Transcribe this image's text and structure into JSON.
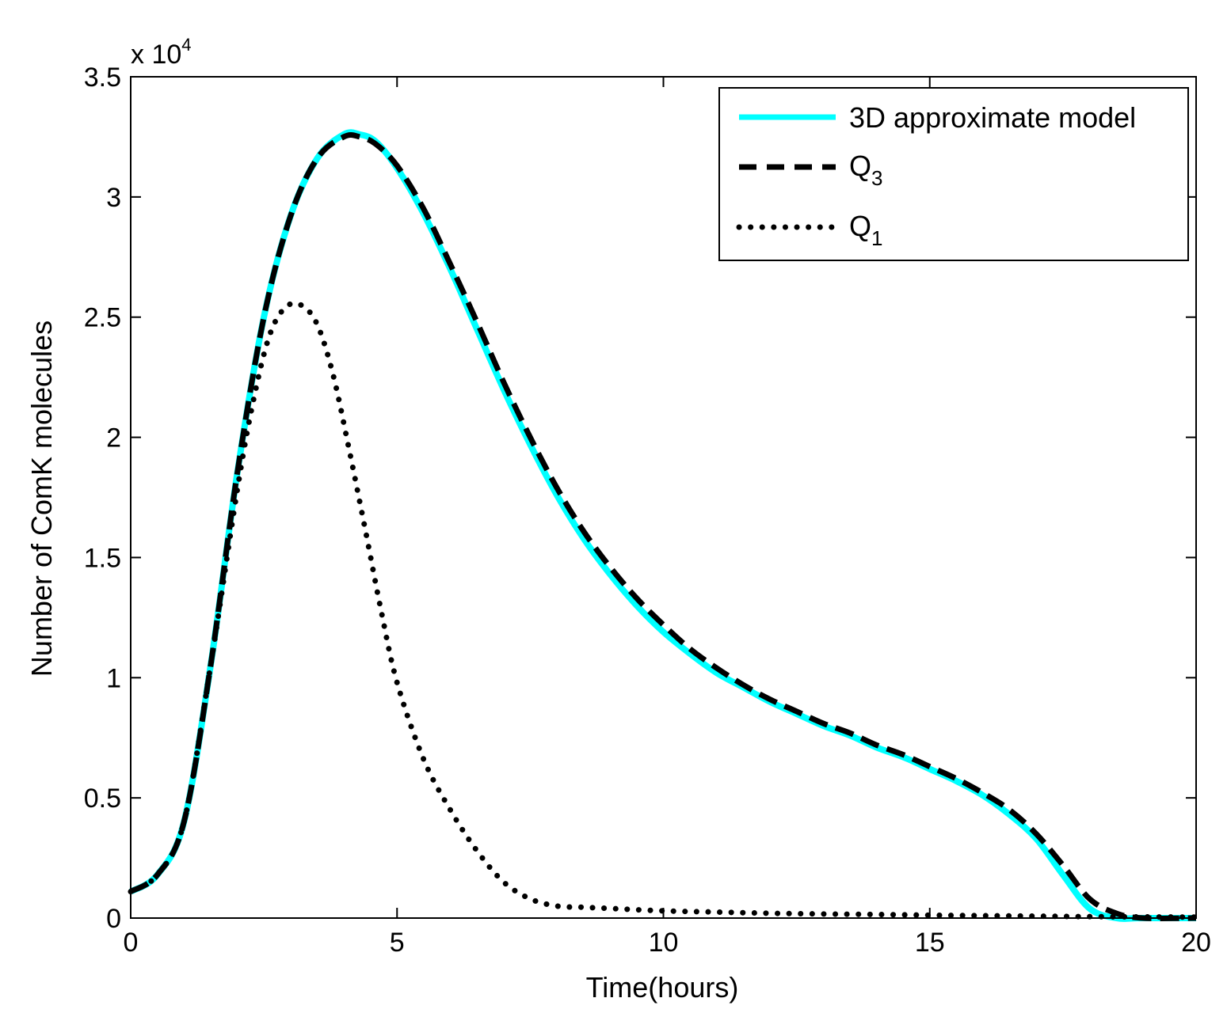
{
  "chart_data": {
    "type": "line",
    "title": "",
    "xlabel": "Time(hours)",
    "ylabel": "Number of ComK molecules",
    "y_multiplier_base": "x 10",
    "y_multiplier_exp": "4",
    "xlim": [
      0,
      20
    ],
    "ylim": [
      0,
      3.5
    ],
    "x_ticks": [
      0,
      5,
      10,
      15,
      20
    ],
    "x_tick_labels": [
      "0",
      "5",
      "10",
      "15",
      "20"
    ],
    "y_ticks": [
      0,
      0.5,
      1,
      1.5,
      2,
      2.5,
      3,
      3.5
    ],
    "y_tick_labels": [
      "0",
      "0.5",
      "1",
      "1.5",
      "2",
      "2.5",
      "3",
      "3.5"
    ],
    "grid": false,
    "legend_position": "top-right",
    "legend": [
      {
        "label": "3D approximate model",
        "base": "3D approximate model",
        "sub": ""
      },
      {
        "label": "Q3",
        "base": "Q",
        "sub": "3"
      },
      {
        "label": "Q1",
        "base": "Q",
        "sub": "1"
      }
    ],
    "series": [
      {
        "name": "3D approximate model",
        "color": "#00ffff",
        "style": "solid",
        "x": [
          0,
          0.5,
          1,
          1.5,
          2,
          2.5,
          3,
          3.5,
          4,
          4.3,
          4.6,
          5,
          5.5,
          6,
          6.5,
          7,
          7.5,
          8,
          8.5,
          9,
          9.5,
          10,
          10.5,
          11,
          11.5,
          12,
          12.5,
          13,
          13.5,
          14,
          14.5,
          15,
          15.5,
          16,
          16.5,
          17,
          17.5,
          18,
          18.5,
          19,
          20
        ],
        "y": [
          0.11,
          0.18,
          0.4,
          1.05,
          1.85,
          2.5,
          2.92,
          3.16,
          3.26,
          3.26,
          3.23,
          3.12,
          2.93,
          2.7,
          2.45,
          2.2,
          1.97,
          1.76,
          1.58,
          1.43,
          1.3,
          1.19,
          1.1,
          1.02,
          0.96,
          0.9,
          0.85,
          0.8,
          0.76,
          0.71,
          0.67,
          0.62,
          0.57,
          0.51,
          0.43,
          0.33,
          0.18,
          0.04,
          0.0,
          0.0,
          0.0
        ]
      },
      {
        "name": "Q3",
        "color": "#000000",
        "style": "dashed",
        "x": [
          0,
          0.5,
          1,
          1.5,
          2,
          2.5,
          3,
          3.5,
          4,
          4.3,
          4.6,
          5,
          5.5,
          6,
          6.5,
          7,
          7.5,
          8,
          8.5,
          9,
          9.5,
          10,
          10.5,
          11,
          11.5,
          12,
          12.5,
          13,
          13.5,
          14,
          14.5,
          15,
          15.5,
          16,
          16.5,
          17,
          17.5,
          18,
          18.5,
          19,
          20
        ],
        "y": [
          0.11,
          0.18,
          0.4,
          1.05,
          1.85,
          2.5,
          2.92,
          3.16,
          3.25,
          3.25,
          3.22,
          3.13,
          2.95,
          2.72,
          2.48,
          2.23,
          2.0,
          1.79,
          1.61,
          1.46,
          1.33,
          1.22,
          1.12,
          1.04,
          0.97,
          0.91,
          0.86,
          0.81,
          0.77,
          0.72,
          0.68,
          0.63,
          0.58,
          0.52,
          0.45,
          0.35,
          0.22,
          0.08,
          0.02,
          0.0,
          0.0
        ]
      },
      {
        "name": "Q1",
        "color": "#000000",
        "style": "dotted",
        "x": [
          0,
          0.5,
          1,
          1.5,
          2,
          2.3,
          2.6,
          2.9,
          3.2,
          3.5,
          3.8,
          4.1,
          4.4,
          4.7,
          5,
          5.5,
          6,
          6.5,
          7,
          7.5,
          8,
          8.5,
          9,
          10,
          11,
          12,
          13,
          14,
          15,
          16,
          17,
          18,
          19,
          20
        ],
        "y": [
          0.11,
          0.18,
          0.4,
          1.05,
          1.78,
          2.15,
          2.42,
          2.54,
          2.55,
          2.47,
          2.26,
          1.95,
          1.62,
          1.28,
          0.98,
          0.66,
          0.45,
          0.28,
          0.15,
          0.08,
          0.05,
          0.045,
          0.04,
          0.03,
          0.025,
          0.02,
          0.017,
          0.015,
          0.012,
          0.01,
          0.008,
          0.006,
          0.005,
          0.004
        ]
      }
    ]
  }
}
